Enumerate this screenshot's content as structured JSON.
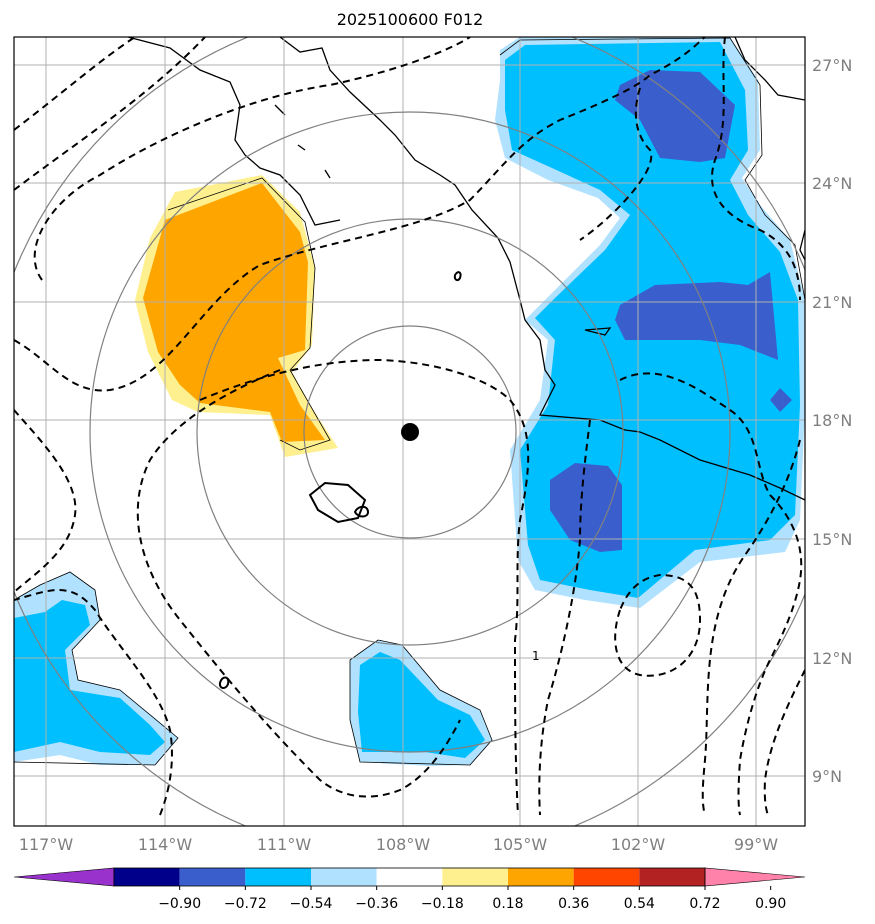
{
  "title": "2025100600 F012",
  "map": {
    "lon_labels": [
      "117°W",
      "114°W",
      "111°W",
      "108°W",
      "105°W",
      "102°W",
      "99°W"
    ],
    "lat_labels": [
      "27°N",
      "24°N",
      "21°N",
      "18°N",
      "15°N",
      "12°N",
      "9°N"
    ],
    "center_marker": "storm-center",
    "contour_label": "1"
  },
  "colorbar": {
    "colors": [
      "#9932cc",
      "#00008b",
      "#3a5fcd",
      "#00bfff",
      "#b0e2ff",
      "#ffffff",
      "#fff08f",
      "#ffa500",
      "#ff4500",
      "#b22222",
      "#ff82ab"
    ],
    "labels": [
      "−0.90",
      "−0.72",
      "−0.54",
      "−0.36",
      "−0.18",
      "0.18",
      "0.36",
      "0.54",
      "0.72",
      "0.90"
    ]
  }
}
